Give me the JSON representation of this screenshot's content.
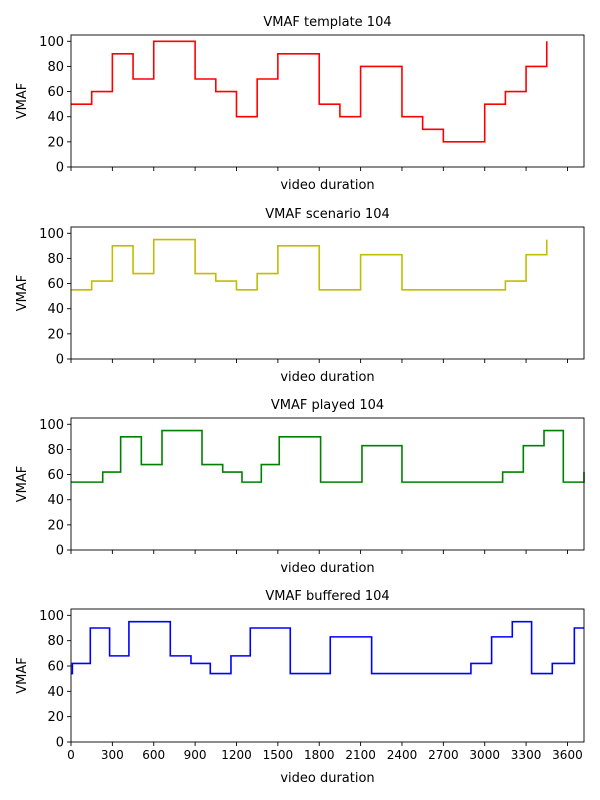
{
  "chart_data": [
    {
      "type": "line",
      "step": "post",
      "title": "VMAF template 104",
      "xlabel": "video duration",
      "ylabel": "VMAF",
      "color": "#ff0000",
      "xlim": [
        0,
        3720
      ],
      "ylim": [
        0,
        105
      ],
      "yticks": [
        0,
        20,
        40,
        60,
        80,
        100
      ],
      "xticks": [
        0,
        300,
        600,
        900,
        1200,
        1500,
        1800,
        2100,
        2400,
        2700,
        3000,
        3300,
        3600
      ],
      "show_xtick_labels": false,
      "x": [
        0,
        150,
        300,
        450,
        600,
        900,
        1050,
        1200,
        1350,
        1500,
        1800,
        1950,
        2100,
        2400,
        2550,
        2700,
        3000,
        3150,
        3300,
        3450
      ],
      "y": [
        50,
        60,
        90,
        70,
        100,
        70,
        60,
        40,
        70,
        90,
        50,
        40,
        80,
        40,
        30,
        20,
        50,
        60,
        80,
        100
      ]
    },
    {
      "type": "line",
      "step": "post",
      "title": "VMAF scenario 104",
      "xlabel": "video duration",
      "ylabel": "VMAF",
      "color": "#bfbf00",
      "xlim": [
        0,
        3720
      ],
      "ylim": [
        0,
        105
      ],
      "yticks": [
        0,
        20,
        40,
        60,
        80,
        100
      ],
      "xticks": [
        0,
        300,
        600,
        900,
        1200,
        1500,
        1800,
        2100,
        2400,
        2700,
        3000,
        3300,
        3600
      ],
      "show_xtick_labels": false,
      "x": [
        0,
        150,
        300,
        450,
        600,
        900,
        1050,
        1200,
        1350,
        1500,
        1800,
        2100,
        2400,
        3150,
        3300,
        3450
      ],
      "y": [
        55,
        62,
        90,
        68,
        95,
        68,
        62,
        55,
        68,
        90,
        55,
        83,
        55,
        62,
        83,
        95
      ]
    },
    {
      "type": "line",
      "step": "post",
      "title": "VMAF played 104",
      "xlabel": "video duration",
      "ylabel": "VMAF",
      "color": "#008000",
      "xlim": [
        0,
        3720
      ],
      "ylim": [
        0,
        105
      ],
      "yticks": [
        0,
        20,
        40,
        60,
        80,
        100
      ],
      "xticks": [
        0,
        300,
        600,
        900,
        1200,
        1500,
        1800,
        2100,
        2400,
        2700,
        3000,
        3300,
        3600
      ],
      "show_xtick_labels": false,
      "x": [
        0,
        230,
        360,
        510,
        660,
        950,
        1100,
        1240,
        1380,
        1510,
        1810,
        2110,
        2400,
        3130,
        3280,
        3430,
        3570,
        3720
      ],
      "y": [
        54,
        62,
        90,
        68,
        95,
        68,
        62,
        54,
        68,
        90,
        54,
        83,
        54,
        62,
        83,
        95,
        54,
        62
      ]
    },
    {
      "type": "line",
      "step": "post",
      "title": "VMAF buffered 104",
      "xlabel": "video duration",
      "ylabel": "VMAF",
      "color": "#0000ff",
      "xlim": [
        0,
        3720
      ],
      "ylim": [
        0,
        105
      ],
      "yticks": [
        0,
        20,
        40,
        60,
        80,
        100
      ],
      "xticks": [
        0,
        300,
        600,
        900,
        1200,
        1500,
        1800,
        2100,
        2400,
        2700,
        3000,
        3300,
        3600
      ],
      "xtick_labels": [
        "0",
        "300",
        "600",
        "900",
        "1200",
        "1500",
        "1800",
        "2100",
        "2400",
        "2700",
        "3000",
        "3300",
        "3600"
      ],
      "show_xtick_labels": true,
      "x": [
        0,
        10,
        140,
        280,
        420,
        720,
        870,
        1010,
        1160,
        1300,
        1590,
        1880,
        2180,
        2900,
        3050,
        3200,
        3340,
        3490,
        3650,
        3720
      ],
      "y": [
        54,
        62,
        90,
        68,
        95,
        68,
        62,
        54,
        68,
        90,
        54,
        83,
        54,
        62,
        83,
        95,
        54,
        62,
        90,
        90
      ]
    }
  ]
}
